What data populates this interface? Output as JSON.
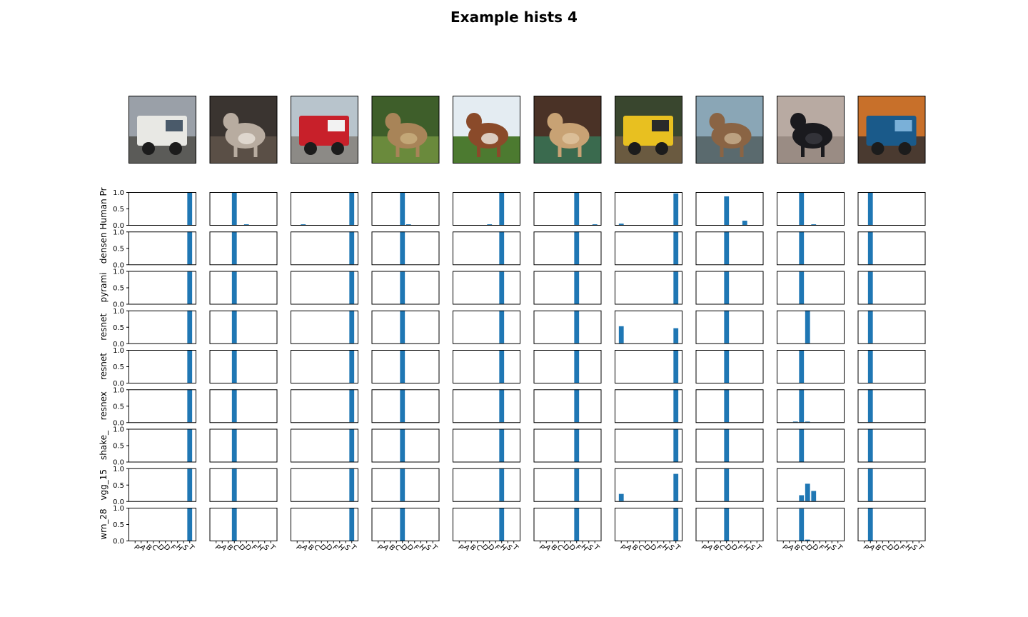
{
  "title": "Example hists 4",
  "chart_data": {
    "type": "bar",
    "title": "Example hists 4",
    "bar_color": "#1f77b4",
    "ylim": [
      0,
      1
    ],
    "yticks": [
      "0.0",
      "0.5",
      "1.0"
    ],
    "categories": [
      "P",
      "A",
      "B",
      "C",
      "D",
      "D",
      "F",
      "H",
      "S",
      "T"
    ],
    "images": [
      "truck",
      "cat",
      "fire-truck",
      "deer",
      "horse",
      "frog",
      "truck",
      "deer",
      "cat",
      "car"
    ],
    "row_labels": [
      "Human Pr",
      "densen",
      "pyrami",
      "resnet",
      "resnet",
      "resnex",
      "shake_",
      "vgg_15",
      "wrn_28"
    ],
    "histograms": [
      [
        [
          0,
          0,
          0,
          0,
          0,
          0,
          0,
          0,
          0,
          1
        ],
        [
          0,
          0,
          0,
          0,
          0,
          0,
          0,
          0,
          0,
          1
        ],
        [
          0,
          0,
          0,
          0,
          0,
          0,
          0,
          0,
          0,
          1
        ],
        [
          0,
          0,
          0,
          0,
          0,
          0,
          0,
          0,
          0,
          1
        ],
        [
          0,
          0,
          0,
          0,
          0,
          0,
          0,
          0,
          0,
          1
        ],
        [
          0,
          0,
          0,
          0,
          0,
          0,
          0,
          0,
          0,
          1
        ],
        [
          0,
          0,
          0,
          0,
          0,
          0,
          0,
          0,
          0,
          1
        ],
        [
          0,
          0,
          0,
          0,
          0,
          0,
          0,
          0,
          0,
          1
        ],
        [
          0,
          0,
          0,
          0,
          0,
          0,
          0,
          0,
          0,
          1
        ]
      ],
      [
        [
          0,
          0,
          0,
          1,
          0,
          0.02,
          0,
          0,
          0,
          0
        ],
        [
          0,
          0,
          0,
          1,
          0,
          0,
          0,
          0,
          0,
          0
        ],
        [
          0,
          0,
          0,
          1,
          0,
          0,
          0,
          0,
          0,
          0
        ],
        [
          0,
          0,
          0,
          1,
          0,
          0,
          0,
          0,
          0,
          0
        ],
        [
          0,
          0,
          0,
          1,
          0,
          0,
          0,
          0,
          0,
          0
        ],
        [
          0,
          0,
          0,
          1,
          0,
          0,
          0,
          0,
          0,
          0
        ],
        [
          0,
          0,
          0,
          1,
          0,
          0,
          0,
          0,
          0,
          0
        ],
        [
          0,
          0,
          0,
          1,
          0,
          0,
          0,
          0,
          0,
          0
        ],
        [
          0,
          0,
          0,
          1,
          0,
          0,
          0,
          0,
          0,
          0
        ]
      ],
      [
        [
          0,
          0.02,
          0,
          0,
          0,
          0,
          0,
          0,
          0,
          1
        ],
        [
          0,
          0,
          0,
          0,
          0,
          0,
          0,
          0,
          0,
          1
        ],
        [
          0,
          0,
          0,
          0,
          0,
          0,
          0,
          0,
          0,
          1
        ],
        [
          0,
          0,
          0,
          0,
          0,
          0,
          0,
          0,
          0,
          1
        ],
        [
          0,
          0,
          0,
          0,
          0,
          0,
          0,
          0,
          0,
          1
        ],
        [
          0,
          0,
          0,
          0,
          0,
          0,
          0,
          0,
          0,
          1
        ],
        [
          0,
          0,
          0,
          0,
          0,
          0,
          0,
          0,
          0,
          1
        ],
        [
          0,
          0,
          0,
          0,
          0,
          0,
          0,
          0,
          0,
          1
        ],
        [
          0,
          0,
          0,
          0,
          0,
          0,
          0,
          0,
          0,
          1
        ]
      ],
      [
        [
          0,
          0,
          0,
          0,
          1,
          0.02,
          0,
          0,
          0,
          0
        ],
        [
          0,
          0,
          0,
          0,
          1,
          0,
          0,
          0,
          0,
          0
        ],
        [
          0,
          0,
          0,
          0,
          1,
          0,
          0,
          0,
          0,
          0
        ],
        [
          0,
          0,
          0,
          0,
          1,
          0,
          0,
          0,
          0,
          0
        ],
        [
          0,
          0,
          0,
          0,
          1,
          0,
          0,
          0,
          0,
          0
        ],
        [
          0,
          0,
          0,
          0,
          1,
          0,
          0,
          0,
          0,
          0
        ],
        [
          0,
          0,
          0,
          0,
          1,
          0,
          0,
          0,
          0,
          0
        ],
        [
          0,
          0,
          0,
          0,
          1,
          0,
          0,
          0,
          0,
          0
        ],
        [
          0,
          0,
          0,
          0,
          1,
          0,
          0,
          0,
          0,
          0
        ]
      ],
      [
        [
          0,
          0,
          0,
          0,
          0,
          0.02,
          0,
          1,
          0,
          0
        ],
        [
          0,
          0,
          0,
          0,
          0,
          0,
          0,
          1,
          0,
          0
        ],
        [
          0,
          0,
          0,
          0,
          0,
          0,
          0,
          1,
          0,
          0
        ],
        [
          0,
          0,
          0,
          0,
          0,
          0,
          0,
          1,
          0,
          0
        ],
        [
          0,
          0,
          0,
          0,
          0,
          0,
          0,
          1,
          0,
          0
        ],
        [
          0,
          0,
          0,
          0,
          0,
          0,
          0,
          1,
          0,
          0
        ],
        [
          0,
          0,
          0,
          0,
          0,
          0,
          0,
          1,
          0,
          0
        ],
        [
          0,
          0,
          0,
          0,
          0,
          0,
          0,
          1,
          0,
          0
        ],
        [
          0,
          0,
          0,
          0,
          0,
          0,
          0,
          1,
          0,
          0
        ]
      ],
      [
        [
          0,
          0,
          0,
          0,
          0,
          0,
          1,
          0,
          0,
          0.02
        ],
        [
          0,
          0,
          0,
          0,
          0,
          0,
          1,
          0,
          0,
          0
        ],
        [
          0,
          0,
          0,
          0,
          0,
          0,
          1,
          0,
          0,
          0
        ],
        [
          0,
          0,
          0,
          0,
          0,
          0,
          1,
          0,
          0,
          0
        ],
        [
          0,
          0,
          0,
          0,
          0,
          0,
          1,
          0,
          0,
          0
        ],
        [
          0,
          0,
          0,
          0,
          0,
          0,
          1,
          0,
          0,
          0
        ],
        [
          0,
          0,
          0,
          0,
          0,
          0,
          1,
          0,
          0,
          0
        ],
        [
          0,
          0,
          0,
          0,
          0,
          0,
          1,
          0,
          0,
          0
        ],
        [
          0,
          0,
          0,
          0,
          0,
          0,
          1,
          0,
          0,
          0
        ]
      ],
      [
        [
          0.04,
          0,
          0,
          0,
          0,
          0,
          0,
          0,
          0,
          0.96
        ],
        [
          0,
          0,
          0,
          0,
          0,
          0,
          0,
          0,
          0,
          1
        ],
        [
          0,
          0,
          0,
          0,
          0,
          0,
          0,
          0,
          0,
          1
        ],
        [
          0.52,
          0,
          0,
          0,
          0,
          0,
          0,
          0,
          0,
          0.46
        ],
        [
          0,
          0,
          0,
          0,
          0,
          0,
          0,
          0,
          0,
          1
        ],
        [
          0,
          0,
          0,
          0,
          0,
          0,
          0,
          0,
          0,
          1
        ],
        [
          0,
          0,
          0,
          0,
          0,
          0,
          0,
          0,
          0,
          1
        ],
        [
          0.22,
          0,
          0,
          0,
          0,
          0,
          0,
          0,
          0,
          0.83
        ],
        [
          0,
          0,
          0,
          0,
          0,
          0,
          0,
          0,
          0,
          1
        ]
      ],
      [
        [
          0,
          0,
          0,
          0,
          0.87,
          0,
          0,
          0.13,
          0,
          0
        ],
        [
          0,
          0,
          0,
          0,
          1,
          0,
          0,
          0,
          0,
          0
        ],
        [
          0,
          0,
          0,
          0,
          1,
          0,
          0,
          0,
          0,
          0
        ],
        [
          0,
          0,
          0,
          0,
          1,
          0,
          0,
          0,
          0,
          0
        ],
        [
          0,
          0,
          0,
          0,
          1,
          0,
          0,
          0,
          0,
          0
        ],
        [
          0,
          0,
          0,
          0,
          1,
          0,
          0,
          0,
          0,
          0
        ],
        [
          0,
          0,
          0,
          0,
          1,
          0,
          0,
          0,
          0,
          0
        ],
        [
          0,
          0,
          0,
          0,
          1,
          0,
          0,
          0,
          0,
          0
        ],
        [
          0,
          0,
          0,
          0,
          1,
          0,
          0,
          0,
          0,
          0
        ]
      ],
      [
        [
          0,
          0,
          0,
          1,
          0,
          0.02,
          0,
          0,
          0,
          0
        ],
        [
          0,
          0,
          0,
          1,
          0,
          0,
          0,
          0,
          0,
          0
        ],
        [
          0,
          0,
          0,
          1,
          0,
          0,
          0,
          0,
          0,
          0
        ],
        [
          0,
          0,
          0,
          0,
          1,
          0,
          0,
          0,
          0,
          0
        ],
        [
          0,
          0,
          0,
          1,
          0,
          0,
          0,
          0,
          0,
          0
        ],
        [
          0,
          0,
          0.02,
          1,
          0.02,
          0,
          0,
          0,
          0,
          0
        ],
        [
          0,
          0,
          0,
          1,
          0,
          0,
          0,
          0,
          0,
          0
        ],
        [
          0,
          0,
          0,
          0.18,
          0.53,
          0.31,
          0,
          0,
          0,
          0
        ],
        [
          0,
          0,
          0,
          0.97,
          0.03,
          0,
          0,
          0,
          0,
          0
        ]
      ],
      [
        [
          0,
          1,
          0,
          0,
          0,
          0,
          0,
          0,
          0,
          0
        ],
        [
          0,
          1,
          0,
          0,
          0,
          0,
          0,
          0,
          0,
          0
        ],
        [
          0,
          1,
          0,
          0,
          0,
          0,
          0,
          0,
          0,
          0
        ],
        [
          0,
          1,
          0,
          0,
          0,
          0,
          0,
          0,
          0,
          0
        ],
        [
          0,
          1,
          0,
          0,
          0,
          0,
          0,
          0,
          0,
          0
        ],
        [
          0,
          1,
          0,
          0,
          0,
          0,
          0,
          0,
          0,
          0
        ],
        [
          0,
          1,
          0,
          0,
          0,
          0,
          0,
          0,
          0,
          0
        ],
        [
          0,
          1,
          0,
          0,
          0,
          0,
          0,
          0,
          0,
          0
        ],
        [
          0,
          1,
          0,
          0,
          0,
          0,
          0,
          0,
          0,
          0
        ]
      ]
    ]
  }
}
